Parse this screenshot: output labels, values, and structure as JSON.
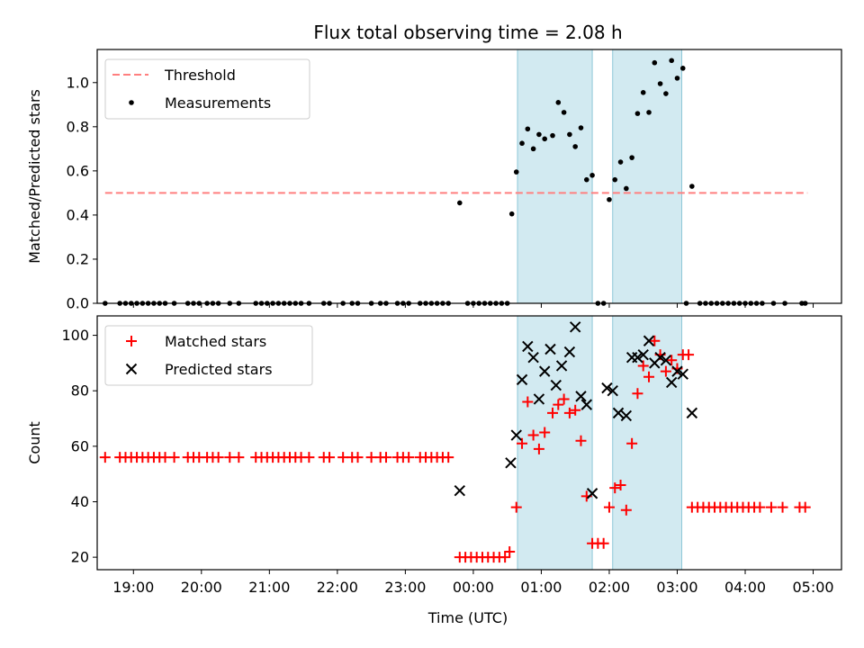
{
  "title": "Flux total observing time = 2.08 h",
  "colors": {
    "threshold": "#ff7f7f",
    "measurements": "#000000",
    "matched": "#ff0000",
    "predicted": "#000000",
    "shade_fill": "#add8e6",
    "shade_stroke": "#8fc7d8"
  },
  "chart_data": [
    {
      "type": "scatter",
      "panel": "top",
      "xlabel": "",
      "ylabel": "Matched/Predicted stars",
      "xlim": [
        "18:28",
        "05:25"
      ],
      "ylim": [
        0,
        1.15
      ],
      "yticks": [
        0.0,
        0.2,
        0.4,
        0.6,
        0.8,
        1.0
      ],
      "yticklabels": [
        "0.0",
        "0.2",
        "0.4",
        "0.6",
        "0.8",
        "1.0"
      ],
      "legend": {
        "placement": "upper left",
        "entries": [
          "Threshold",
          "Measurements"
        ]
      },
      "threshold": {
        "name": "Threshold",
        "value": 0.5,
        "x_start": "18:35",
        "x_end": "04:55"
      },
      "shaded_intervals": [
        [
          "00:39",
          "01:45"
        ],
        [
          "02:03",
          "03:04"
        ]
      ],
      "series": [
        {
          "name": "Measurements",
          "points": [
            [
              "18:35",
              0
            ],
            [
              "18:48",
              0
            ],
            [
              "18:53",
              0
            ],
            [
              "18:58",
              0
            ],
            [
              "19:03",
              0
            ],
            [
              "19:08",
              0
            ],
            [
              "19:13",
              0
            ],
            [
              "19:18",
              0
            ],
            [
              "19:23",
              0
            ],
            [
              "19:28",
              0
            ],
            [
              "19:36",
              0
            ],
            [
              "19:48",
              0
            ],
            [
              "19:53",
              0
            ],
            [
              "19:58",
              0
            ],
            [
              "20:05",
              0
            ],
            [
              "20:10",
              0
            ],
            [
              "20:15",
              0
            ],
            [
              "20:25",
              0
            ],
            [
              "20:33",
              0
            ],
            [
              "20:48",
              0
            ],
            [
              "20:53",
              0
            ],
            [
              "20:58",
              0
            ],
            [
              "21:03",
              0
            ],
            [
              "21:08",
              0
            ],
            [
              "21:13",
              0
            ],
            [
              "21:18",
              0
            ],
            [
              "21:23",
              0
            ],
            [
              "21:28",
              0
            ],
            [
              "21:35",
              0
            ],
            [
              "21:48",
              0
            ],
            [
              "21:53",
              0
            ],
            [
              "22:05",
              0
            ],
            [
              "22:13",
              0
            ],
            [
              "22:18",
              0
            ],
            [
              "22:30",
              0
            ],
            [
              "22:38",
              0
            ],
            [
              "22:43",
              0
            ],
            [
              "22:53",
              0
            ],
            [
              "22:58",
              0
            ],
            [
              "23:03",
              0
            ],
            [
              "23:13",
              0
            ],
            [
              "23:18",
              0
            ],
            [
              "23:23",
              0
            ],
            [
              "23:28",
              0
            ],
            [
              "23:33",
              0
            ],
            [
              "23:38",
              0
            ],
            [
              "23:48",
              0.455
            ],
            [
              "23:55",
              0
            ],
            [
              "24:00",
              0
            ],
            [
              "24:05",
              0
            ],
            [
              "24:10",
              0
            ],
            [
              "24:15",
              0
            ],
            [
              "24:20",
              0
            ],
            [
              "24:25",
              0
            ],
            [
              "24:30",
              0
            ],
            [
              "24:34",
              0.405
            ],
            [
              "24:38",
              0.595
            ],
            [
              "24:43",
              0.725
            ],
            [
              "24:48",
              0.79
            ],
            [
              "24:53",
              0.7
            ],
            [
              "24:58",
              0.765
            ],
            [
              "25:03",
              0.745
            ],
            [
              "25:10",
              0.76
            ],
            [
              "25:15",
              0.91
            ],
            [
              "25:20",
              0.865
            ],
            [
              "25:25",
              0.765
            ],
            [
              "25:30",
              0.71
            ],
            [
              "25:35",
              0.795
            ],
            [
              "25:40",
              0.56
            ],
            [
              "25:45",
              0.58
            ],
            [
              "25:50",
              0
            ],
            [
              "25:55",
              0
            ],
            [
              "26:00",
              0.47
            ],
            [
              "26:05",
              0.56
            ],
            [
              "26:10",
              0.64
            ],
            [
              "26:15",
              0.52
            ],
            [
              "26:20",
              0.66
            ],
            [
              "26:25",
              0.86
            ],
            [
              "26:30",
              0.955
            ],
            [
              "26:35",
              0.865
            ],
            [
              "26:40",
              1.09
            ],
            [
              "26:45",
              0.995
            ],
            [
              "26:50",
              0.95
            ],
            [
              "26:55",
              1.1
            ],
            [
              "27:00",
              1.02
            ],
            [
              "27:05",
              1.065
            ],
            [
              "27:08",
              0
            ],
            [
              "27:13",
              0.53
            ],
            [
              "27:20",
              0
            ],
            [
              "27:25",
              0
            ],
            [
              "27:30",
              0
            ],
            [
              "27:35",
              0
            ],
            [
              "27:40",
              0
            ],
            [
              "27:45",
              0
            ],
            [
              "27:50",
              0
            ],
            [
              "27:55",
              0
            ],
            [
              "28:00",
              0
            ],
            [
              "28:05",
              0
            ],
            [
              "28:10",
              0
            ],
            [
              "28:15",
              0
            ],
            [
              "28:25",
              0
            ],
            [
              "28:35",
              0
            ],
            [
              "28:50",
              0
            ],
            [
              "28:53",
              0
            ]
          ]
        }
      ]
    },
    {
      "type": "scatter",
      "panel": "bottom",
      "xlabel": "Time (UTC)",
      "ylabel": "Count",
      "xlim": [
        "18:28",
        "05:25"
      ],
      "ylim": [
        15.5,
        107
      ],
      "yticks": [
        20,
        40,
        60,
        80,
        100
      ],
      "yticklabels": [
        "20",
        "40",
        "60",
        "80",
        "100"
      ],
      "xticks": [
        "19:00",
        "20:00",
        "21:00",
        "22:00",
        "23:00",
        "00:00",
        "01:00",
        "02:00",
        "03:00",
        "04:00",
        "05:00"
      ],
      "legend": {
        "placement": "upper left",
        "entries": [
          "Matched stars",
          "Predicted stars"
        ]
      },
      "shaded_intervals": [
        [
          "00:39",
          "01:45"
        ],
        [
          "02:03",
          "03:04"
        ]
      ],
      "series": [
        {
          "name": "Matched stars",
          "marker": "+",
          "points": [
            [
              "18:35",
              56
            ],
            [
              "18:48",
              56
            ],
            [
              "18:53",
              56
            ],
            [
              "18:58",
              56
            ],
            [
              "19:03",
              56
            ],
            [
              "19:08",
              56
            ],
            [
              "19:13",
              56
            ],
            [
              "19:18",
              56
            ],
            [
              "19:23",
              56
            ],
            [
              "19:28",
              56
            ],
            [
              "19:36",
              56
            ],
            [
              "19:48",
              56
            ],
            [
              "19:53",
              56
            ],
            [
              "19:58",
              56
            ],
            [
              "20:05",
              56
            ],
            [
              "20:10",
              56
            ],
            [
              "20:15",
              56
            ],
            [
              "20:25",
              56
            ],
            [
              "20:33",
              56
            ],
            [
              "20:48",
              56
            ],
            [
              "20:53",
              56
            ],
            [
              "20:58",
              56
            ],
            [
              "21:03",
              56
            ],
            [
              "21:08",
              56
            ],
            [
              "21:13",
              56
            ],
            [
              "21:18",
              56
            ],
            [
              "21:23",
              56
            ],
            [
              "21:28",
              56
            ],
            [
              "21:35",
              56
            ],
            [
              "21:48",
              56
            ],
            [
              "21:53",
              56
            ],
            [
              "22:05",
              56
            ],
            [
              "22:13",
              56
            ],
            [
              "22:18",
              56
            ],
            [
              "22:30",
              56
            ],
            [
              "22:38",
              56
            ],
            [
              "22:43",
              56
            ],
            [
              "22:53",
              56
            ],
            [
              "22:58",
              56
            ],
            [
              "23:03",
              56
            ],
            [
              "23:13",
              56
            ],
            [
              "23:18",
              56
            ],
            [
              "23:23",
              56
            ],
            [
              "23:28",
              56
            ],
            [
              "23:33",
              56
            ],
            [
              "23:38",
              56
            ],
            [
              "23:48",
              20
            ],
            [
              "23:53",
              20
            ],
            [
              "23:58",
              20
            ],
            [
              "24:03",
              20
            ],
            [
              "24:08",
              20
            ],
            [
              "24:13",
              20
            ],
            [
              "24:18",
              20
            ],
            [
              "24:23",
              20
            ],
            [
              "24:28",
              20
            ],
            [
              "24:32",
              22
            ],
            [
              "24:38",
              38
            ],
            [
              "24:43",
              61
            ],
            [
              "24:48",
              76
            ],
            [
              "24:53",
              64
            ],
            [
              "24:58",
              59
            ],
            [
              "25:03",
              65
            ],
            [
              "25:10",
              72
            ],
            [
              "25:15",
              75
            ],
            [
              "25:20",
              77
            ],
            [
              "25:25",
              72
            ],
            [
              "25:30",
              73
            ],
            [
              "25:35",
              62
            ],
            [
              "25:40",
              42
            ],
            [
              "25:45",
              25
            ],
            [
              "25:50",
              25
            ],
            [
              "25:55",
              25
            ],
            [
              "26:00",
              38
            ],
            [
              "26:05",
              45
            ],
            [
              "26:10",
              46
            ],
            [
              "26:15",
              37
            ],
            [
              "26:20",
              61
            ],
            [
              "26:25",
              79
            ],
            [
              "26:30",
              89
            ],
            [
              "26:35",
              85
            ],
            [
              "26:40",
              98
            ],
            [
              "26:45",
              93
            ],
            [
              "26:50",
              87
            ],
            [
              "26:55",
              91
            ],
            [
              "27:00",
              88
            ],
            [
              "27:05",
              93
            ],
            [
              "27:10",
              93
            ],
            [
              "27:13",
              38
            ],
            [
              "27:18",
              38
            ],
            [
              "27:23",
              38
            ],
            [
              "27:28",
              38
            ],
            [
              "27:33",
              38
            ],
            [
              "27:38",
              38
            ],
            [
              "27:43",
              38
            ],
            [
              "27:48",
              38
            ],
            [
              "27:53",
              38
            ],
            [
              "27:58",
              38
            ],
            [
              "28:03",
              38
            ],
            [
              "28:08",
              38
            ],
            [
              "28:13",
              38
            ],
            [
              "28:23",
              38
            ],
            [
              "28:33",
              38
            ],
            [
              "28:48",
              38
            ],
            [
              "28:53",
              38
            ]
          ]
        },
        {
          "name": "Predicted stars",
          "marker": "x",
          "points": [
            [
              "23:48",
              44
            ],
            [
              "24:33",
              54
            ],
            [
              "24:38",
              64
            ],
            [
              "24:43",
              84
            ],
            [
              "24:48",
              96
            ],
            [
              "24:53",
              92
            ],
            [
              "24:58",
              77
            ],
            [
              "25:03",
              87
            ],
            [
              "25:08",
              95
            ],
            [
              "25:13",
              82
            ],
            [
              "25:18",
              89
            ],
            [
              "25:25",
              94
            ],
            [
              "25:30",
              103
            ],
            [
              "25:35",
              78
            ],
            [
              "25:40",
              75
            ],
            [
              "25:45",
              43
            ],
            [
              "25:58",
              81
            ],
            [
              "26:03",
              80
            ],
            [
              "26:08",
              72
            ],
            [
              "26:15",
              71
            ],
            [
              "26:20",
              92
            ],
            [
              "26:25",
              92
            ],
            [
              "26:30",
              93
            ],
            [
              "26:35",
              98
            ],
            [
              "26:40",
              90
            ],
            [
              "26:45",
              92
            ],
            [
              "26:50",
              91
            ],
            [
              "26:55",
              83
            ],
            [
              "27:00",
              87
            ],
            [
              "27:05",
              86
            ],
            [
              "27:13",
              72
            ]
          ]
        }
      ]
    }
  ]
}
